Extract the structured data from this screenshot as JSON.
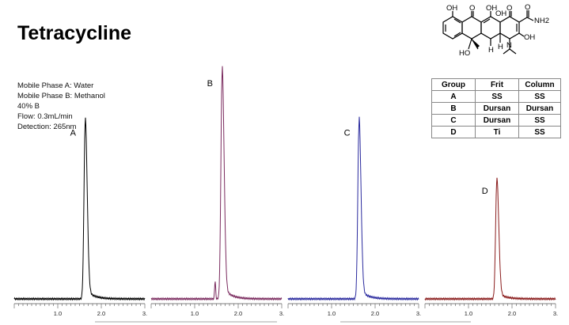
{
  "title": "Tetracycline",
  "conditions": [
    "Mobile Phase A: Water",
    "Mobile Phase B: Methanol",
    "40% B",
    "Flow: 0.3mL/min",
    "Detection: 265nm"
  ],
  "structure": {
    "labels": [
      "OH",
      "O",
      "OH",
      "OH",
      "O",
      "O",
      "NH2",
      "OH",
      "HO",
      "H",
      "H",
      "N"
    ]
  },
  "table": {
    "headers": [
      "Group",
      "Frit",
      "Column"
    ],
    "rows": [
      [
        "A",
        "SS",
        "SS"
      ],
      [
        "B",
        "Dursan",
        "Dursan"
      ],
      [
        "C",
        "Dursan",
        "SS"
      ],
      [
        "D",
        "Ti",
        "SS"
      ]
    ]
  },
  "chart_data": {
    "type": "line",
    "title": "",
    "xlabel": "",
    "ylabel": "",
    "x_unit": "min",
    "series": [
      {
        "name": "A",
        "color": "#000000",
        "retention_time": 1.63,
        "peak_height": 0.78,
        "shoulder": null
      },
      {
        "name": "B",
        "color": "#7a2a5e",
        "retention_time": 1.63,
        "peak_height": 1.0,
        "shoulder": {
          "x": 1.47,
          "height": 0.08
        }
      },
      {
        "name": "C",
        "color": "#2a2a9e",
        "retention_time": 1.63,
        "peak_height": 0.78,
        "shoulder": null
      },
      {
        "name": "D",
        "color": "#8a1c1c",
        "retention_time": 1.65,
        "peak_height": 0.52,
        "shoulder": null
      }
    ],
    "x_ticks": [
      {
        "value": 1.0,
        "label": "1.0"
      },
      {
        "value": 2.0,
        "label": "2.0"
      },
      {
        "value": 3.0,
        "label": "3."
      }
    ],
    "xlim": [
      0,
      3.0
    ]
  }
}
